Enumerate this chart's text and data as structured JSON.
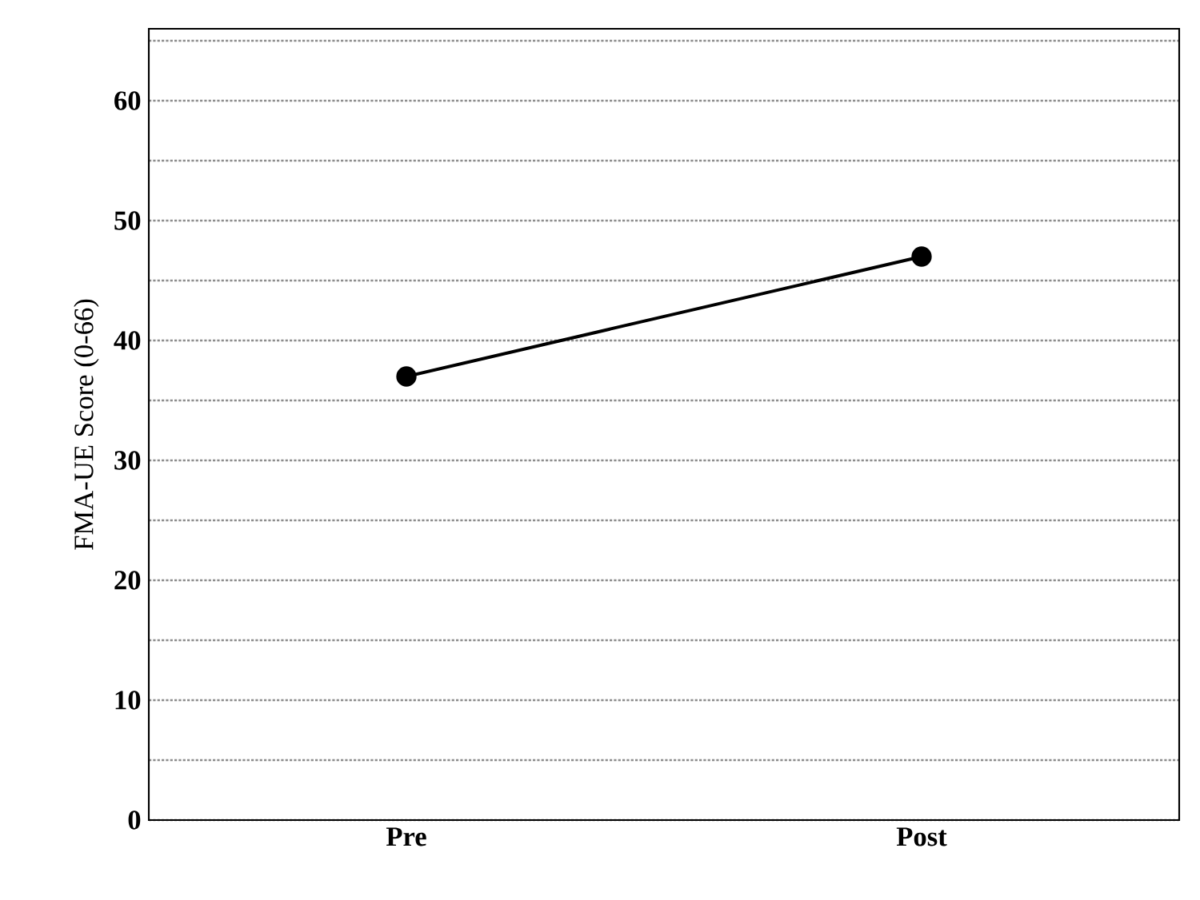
{
  "chart_data": {
    "type": "line",
    "ylabel": "FMA-UE Score (0-66)",
    "categories": [
      "Pre",
      "Post"
    ],
    "series": [
      {
        "color": "#000000",
        "values": [
          37,
          47
        ]
      }
    ],
    "ylim": [
      0,
      66
    ],
    "yticks": [
      0,
      {
        "value": 5,
        "label": null
      },
      10,
      {
        "value": 15,
        "label": null
      },
      20,
      {
        "value": 25,
        "label": null
      },
      30,
      {
        "value": 35,
        "label": null
      },
      40,
      {
        "value": 45,
        "label": null
      },
      50,
      {
        "value": 55,
        "label": null
      },
      60,
      {
        "value": 65,
        "label": null
      }
    ],
    "grid": "y",
    "marker": "circle",
    "line_style": "solid"
  }
}
